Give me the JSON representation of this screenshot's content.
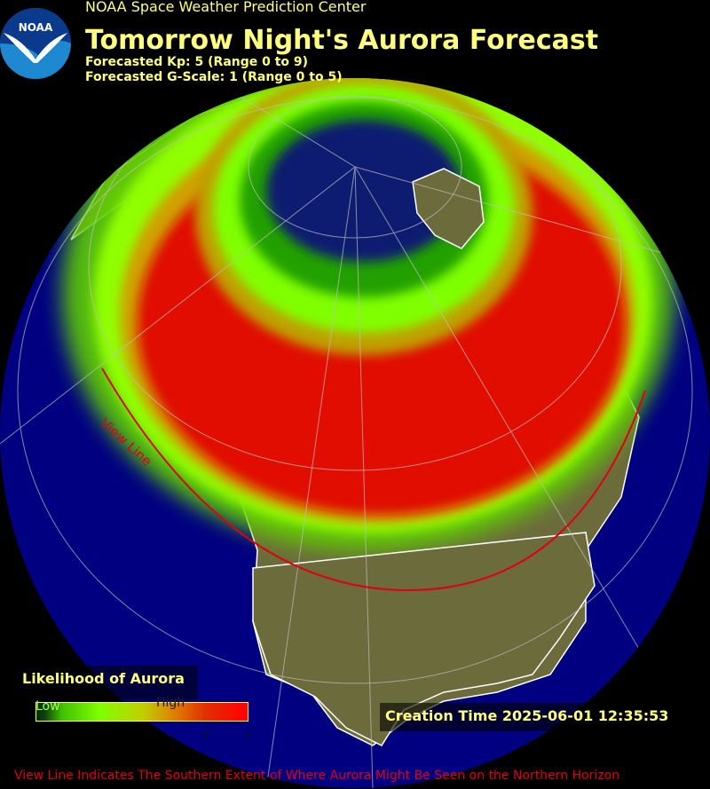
{
  "header": {
    "organization": "NOAA Space Weather Prediction Center",
    "title": "Tomorrow Night's Aurora Forecast",
    "kp_line": "Forecasted Kp: 5 (Range 0 to 9)",
    "gscale_line": "Forecasted G-Scale: 1 (Range 0 to 5)",
    "logo_text": "NOAA"
  },
  "forecast": {
    "kp": 5,
    "kp_range": [
      0,
      9
    ],
    "g_scale": 1,
    "g_scale_range": [
      0,
      5
    ]
  },
  "map": {
    "view_line_label": "View Line",
    "colors": {
      "ocean": "#000080",
      "land": "#6b6b3c",
      "aurora_high": "#e00c00",
      "aurora_low": "#80ff00",
      "view_line": "#e00010"
    }
  },
  "legend": {
    "title": "Likelihood of Aurora",
    "low_label": "Low",
    "high_label": "High",
    "ticks": [
      "4",
      "5"
    ]
  },
  "creation_time": "Creation Time 2025-06-01 12:35:53",
  "footer": "View Line Indicates The Southern Extent of Where Aurora Might Be Seen on the Northern Horizon"
}
